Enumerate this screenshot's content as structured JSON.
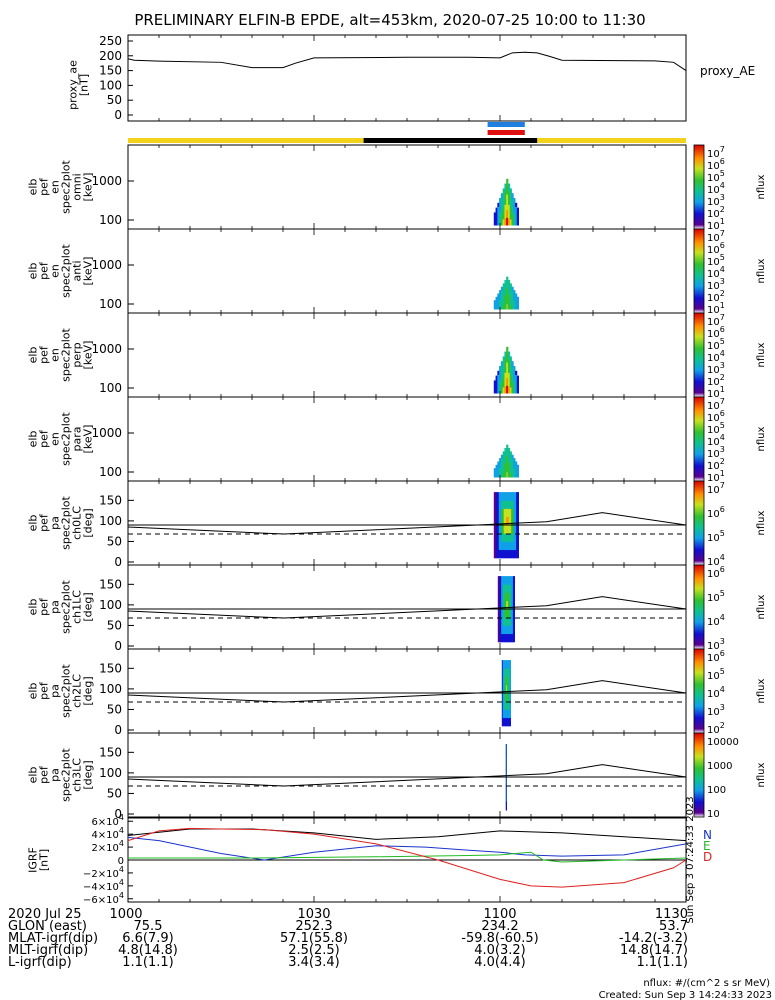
{
  "title": "PRELIMINARY ELFIN-B EPDE, alt=453km, 2020-07-25 10:00 to 11:30",
  "colors": {
    "sunlight": "#f2d21b",
    "shadow": "#000000",
    "sci_zone_blue": "#1e7fe0",
    "sci_zone_red": "#e01010",
    "grf_n": "#1a33cc",
    "grf_e": "#22bb22",
    "grf_d": "#dd2222"
  },
  "proxy_panel": {
    "ylabel_lines": [
      "proxy_ae",
      "[nT]"
    ],
    "side_label": "proxy_AE",
    "yticks": [
      "250",
      "200",
      "150",
      "100",
      "50",
      "0"
    ]
  },
  "energy_panels": [
    {
      "ylabel_lines": [
        "elb",
        "pef",
        "en",
        "spec2plot",
        "omni",
        "[keV]"
      ],
      "yticks": [
        "1000",
        "100"
      ],
      "cbar_ticks": [
        "10^7",
        "10^6",
        "10^5",
        "10^4",
        "10^3",
        "10^2",
        "10^1"
      ],
      "cbar_label": "nflux"
    },
    {
      "ylabel_lines": [
        "elb",
        "pef",
        "en",
        "spec2plot",
        "anti",
        "[keV]"
      ],
      "yticks": [
        "1000",
        "100"
      ],
      "cbar_ticks": [
        "10^7",
        "10^6",
        "10^5",
        "10^4",
        "10^3",
        "10^2",
        "10^1"
      ],
      "cbar_label": "nflux"
    },
    {
      "ylabel_lines": [
        "elb",
        "pef",
        "en",
        "spec2plot",
        "perp",
        "[keV]"
      ],
      "yticks": [
        "1000",
        "100"
      ],
      "cbar_ticks": [
        "10^7",
        "10^6",
        "10^5",
        "10^4",
        "10^3",
        "10^2",
        "10^1"
      ],
      "cbar_label": "nflux"
    },
    {
      "ylabel_lines": [
        "elb",
        "pef",
        "en",
        "spec2plot",
        "para",
        "[keV]"
      ],
      "yticks": [
        "1000",
        "100"
      ],
      "cbar_ticks": [
        "10^7",
        "10^6",
        "10^5",
        "10^4",
        "10^3",
        "10^2",
        "10^1"
      ],
      "cbar_label": "nflux"
    }
  ],
  "pa_panels": [
    {
      "ylabel_lines": [
        "elb",
        "pef",
        "pa",
        "spec2plot",
        "ch0LC",
        "[deg]"
      ],
      "yticks": [
        "150",
        "100",
        "50",
        "0"
      ],
      "cbar_ticks": [
        "10^7",
        "10^6",
        "10^5",
        "10^4"
      ],
      "cbar_label": "nflux"
    },
    {
      "ylabel_lines": [
        "elb",
        "pef",
        "pa",
        "spec2plot",
        "ch1LC",
        "[deg]"
      ],
      "yticks": [
        "150",
        "100",
        "50",
        "0"
      ],
      "cbar_ticks": [
        "10^6",
        "10^5",
        "10^4",
        "10^3"
      ],
      "cbar_label": "nflux"
    },
    {
      "ylabel_lines": [
        "elb",
        "pef",
        "pa",
        "spec2plot",
        "ch2LC",
        "[deg]"
      ],
      "yticks": [
        "150",
        "100",
        "50",
        "0"
      ],
      "cbar_ticks": [
        "10^6",
        "10^5",
        "10^4",
        "10^3",
        "10^2"
      ],
      "cbar_label": "nflux"
    },
    {
      "ylabel_lines": [
        "elb",
        "pef",
        "pa",
        "spec2plot",
        "ch3LC",
        "[deg]"
      ],
      "yticks": [
        "150",
        "100",
        "50",
        "0"
      ],
      "cbar_ticks": [
        "10000",
        "1000",
        "100",
        "10"
      ],
      "cbar_label": "nflux"
    }
  ],
  "grf_panel": {
    "ylabel_lines": [
      "IGRF",
      "[nT]"
    ],
    "yticks": [
      "6×10^4",
      "4×10^4",
      "2×10^4",
      "0",
      "−2×10^4",
      "−4×10^4",
      "−6×10^4"
    ],
    "legend": [
      "N",
      "E",
      "D"
    ],
    "vertical_note": "Sun Sep  3 07:24:33 2023"
  },
  "footer": {
    "rows": [
      {
        "label": "2020 Jul 25",
        "values": [
          "1000",
          "1030",
          "1100",
          "1130"
        ]
      },
      {
        "label": "GLON (east)",
        "values": [
          "75.5",
          "252.3",
          "234.2",
          "53.7"
        ]
      },
      {
        "label": "MLAT-igrf(dip)",
        "values": [
          "6.6(7.9)",
          "57.1(55.8)",
          "-59.8(-60.5)",
          "-14.2(-3.2)"
        ]
      },
      {
        "label": "MLT-igrf(dip)",
        "values": [
          "4.8(14.8)",
          "2.5(2.5)",
          "4.0(3.2)",
          "14.8(14.7)"
        ]
      },
      {
        "label": "L-igrf(dip)",
        "values": [
          "1.1(1.1)",
          "3.4(3.4)",
          "4.0(4.4)",
          "1.1(1.1)"
        ]
      }
    ],
    "units_note": "nflux: #/(cm^2 s sr MeV)",
    "created_note": "Created: Sun Sep  3 14:24:33 2023"
  },
  "chart_data": {
    "type": "line",
    "title": "PRELIMINARY ELFIN-B EPDE, alt=453km, 2020-07-25 10:00 to 11:30",
    "x_range_minutes_utc": [
      "10:00",
      "11:30"
    ],
    "x_tick_labels": [
      "1000",
      "1030",
      "1100",
      "1130"
    ],
    "series": [
      {
        "name": "proxy_AE",
        "ylim": [
          0,
          250
        ],
        "x": [
          "10:00",
          "10:01",
          "10:05",
          "10:15",
          "10:20",
          "10:25",
          "10:27",
          "10:30",
          "10:45",
          "10:55",
          "11:00",
          "11:02",
          "11:04",
          "11:06",
          "11:08",
          "11:10",
          "11:25",
          "11:28",
          "11:30"
        ],
        "values": [
          190,
          185,
          182,
          178,
          160,
          160,
          175,
          193,
          195,
          195,
          193,
          210,
          212,
          210,
          198,
          185,
          183,
          178,
          150
        ]
      }
    ],
    "ephemeris_bar": {
      "sunlight": [
        [
          "10:00",
          "10:38"
        ],
        [
          "11:06",
          "11:30"
        ]
      ],
      "shadow": [
        [
          "10:38",
          "11:06"
        ]
      ]
    },
    "science_zone_markers": [
      {
        "color": "blue",
        "x": [
          "10:58",
          "11:04"
        ]
      },
      {
        "color": "red",
        "x": [
          "10:58",
          "11:04"
        ]
      }
    ],
    "energy_spectrogram": {
      "ylim_keV": [
        50,
        7000
      ],
      "ylog": true,
      "burst_time": [
        "10:59",
        "11:03"
      ],
      "cbar_range": [
        "10^1",
        "10^7"
      ]
    },
    "pitch_angle_spectrogram": {
      "ylim_deg": [
        0,
        180
      ],
      "burst_time": [
        "10:59",
        "11:03"
      ],
      "loss_cone_solid": [
        [
          0,
          85
        ],
        [
          0.28,
          68
        ],
        [
          0.55,
          85
        ],
        [
          0.75,
          98
        ],
        [
          0.85,
          120
        ],
        [
          1,
          90
        ]
      ],
      "loss_cone_dashed_deg": 68
    },
    "igrf": {
      "ylim": [
        -65000.0,
        65000.0
      ],
      "N": {
        "x": [
          "10:00",
          "10:05",
          "10:15",
          "10:22",
          "10:30",
          "10:40",
          "10:48",
          "10:55",
          "11:00",
          "11:04",
          "11:10",
          "11:20",
          "11:30"
        ],
        "values": [
          35000,
          30000,
          10000,
          0,
          12000,
          22000,
          20000,
          15000,
          12000,
          8000,
          6000,
          8000,
          25000
        ]
      },
      "E": {
        "x": [
          "10:00",
          "10:20",
          "10:40",
          "10:55",
          "11:00",
          "11:05",
          "11:07",
          "11:10",
          "11:20",
          "11:30"
        ],
        "values": [
          3000,
          3000,
          5000,
          7000,
          8000,
          12000,
          0,
          -3000,
          0,
          3000
        ]
      },
      "D": {
        "x": [
          "10:00",
          "10:05",
          "10:10",
          "10:15",
          "10:22",
          "10:30",
          "10:40",
          "10:50",
          "11:00",
          "11:05",
          "11:10",
          "11:20",
          "11:28",
          "11:30"
        ],
        "values": [
          30000,
          45000,
          49000,
          48000,
          47000,
          40000,
          25000,
          0,
          -30000,
          -40000,
          -42000,
          -35000,
          -12000,
          0
        ]
      },
      "total": {
        "x": [
          "10:00",
          "10:10",
          "10:20",
          "10:30",
          "10:40",
          "10:50",
          "11:00",
          "11:10",
          "11:20",
          "11:30"
        ],
        "values": [
          38000,
          48000,
          48000,
          42000,
          32000,
          36000,
          45000,
          42000,
          36000,
          30000
        ]
      }
    }
  }
}
